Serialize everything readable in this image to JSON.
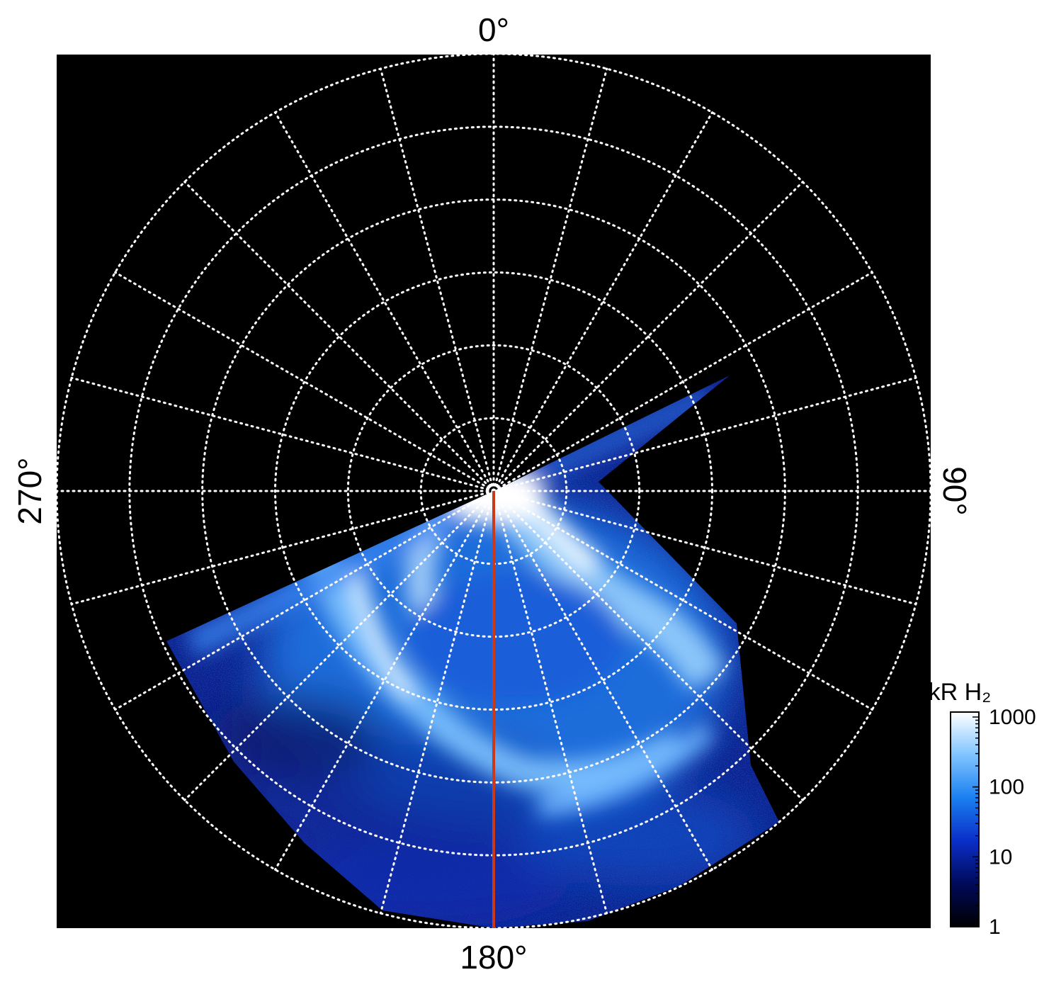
{
  "chart_data": {
    "type": "heatmap",
    "projection": "polar",
    "angle_labels": [
      {
        "angle_deg": 0,
        "text": "0°"
      },
      {
        "angle_deg": 90,
        "text": "90°"
      },
      {
        "angle_deg": 180,
        "text": "180°"
      },
      {
        "angle_deg": 270,
        "text": "270°"
      }
    ],
    "grid": true,
    "grid_rings": 6,
    "grid_spoke_step_deg": 15,
    "highlight_meridian_deg": 180,
    "highlight_color": "#c83a1a",
    "background_color": "#000000",
    "colorbar": {
      "label": "kR H₂",
      "scale": "log",
      "range": [
        1,
        1000
      ],
      "ticks": [
        "1",
        "10",
        "100",
        "1000"
      ],
      "colors": [
        "#000000",
        "#000a5a",
        "#0a2ec8",
        "#1a7ff0",
        "#7fc4ff",
        "#ffffff"
      ]
    }
  }
}
